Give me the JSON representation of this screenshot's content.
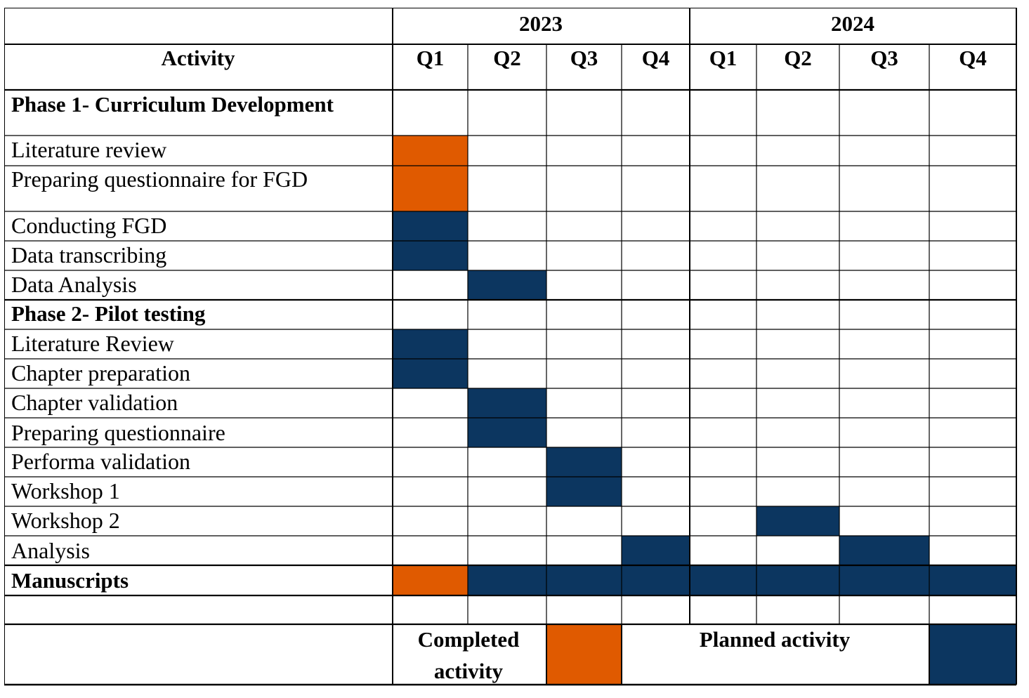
{
  "header": {
    "activity_label": "Activity",
    "years": [
      {
        "label": "2023",
        "quarters": [
          "Q1",
          "Q2",
          "Q3",
          "Q4"
        ]
      },
      {
        "label": "2024",
        "quarters": [
          "Q1",
          "Q2",
          "Q3",
          "Q4"
        ]
      }
    ]
  },
  "colors": {
    "completed": "#E05A00",
    "planned": "#0C3660",
    "grid": "#000000",
    "background": "#FFFFFF"
  },
  "rows": [
    {
      "label": "Phase 1- Curriculum Development",
      "bold": true,
      "cells": [
        "",
        "",
        "",
        "",
        "",
        "",
        "",
        ""
      ]
    },
    {
      "label": "Literature review",
      "bold": false,
      "cells": [
        "completed",
        "",
        "",
        "",
        "",
        "",
        "",
        ""
      ]
    },
    {
      "label": "Preparing questionnaire for FGD",
      "bold": false,
      "cells": [
        "completed",
        "",
        "",
        "",
        "",
        "",
        "",
        ""
      ]
    },
    {
      "label": "Conducting FGD",
      "bold": false,
      "cells": [
        "planned",
        "",
        "",
        "",
        "",
        "",
        "",
        ""
      ]
    },
    {
      "label": "Data transcribing",
      "bold": false,
      "cells": [
        "planned",
        "",
        "",
        "",
        "",
        "",
        "",
        ""
      ]
    },
    {
      "label": "Data Analysis",
      "bold": false,
      "cells": [
        "",
        "planned",
        "",
        "",
        "",
        "",
        "",
        ""
      ]
    },
    {
      "label": "Phase 2- Pilot testing",
      "bold": true,
      "cells": [
        "",
        "",
        "",
        "",
        "",
        "",
        "",
        ""
      ]
    },
    {
      "label": "Literature Review",
      "bold": false,
      "cells": [
        "planned",
        "",
        "",
        "",
        "",
        "",
        "",
        ""
      ]
    },
    {
      "label": "Chapter preparation",
      "bold": false,
      "cells": [
        "planned",
        "",
        "",
        "",
        "",
        "",
        "",
        ""
      ]
    },
    {
      "label": "Chapter validation",
      "bold": false,
      "cells": [
        "",
        "planned",
        "",
        "",
        "",
        "",
        "",
        ""
      ]
    },
    {
      "label": "Preparing questionnaire",
      "bold": false,
      "cells": [
        "",
        "planned",
        "",
        "",
        "",
        "",
        "",
        ""
      ]
    },
    {
      "label": "Performa validation",
      "bold": false,
      "cells": [
        "",
        "",
        "planned",
        "",
        "",
        "",
        "",
        ""
      ]
    },
    {
      "label": "Workshop 1",
      "bold": false,
      "cells": [
        "",
        "",
        "planned",
        "",
        "",
        "",
        "",
        ""
      ]
    },
    {
      "label": "Workshop 2",
      "bold": false,
      "cells": [
        "",
        "",
        "",
        "",
        "",
        "planned",
        "",
        ""
      ]
    },
    {
      "label": "Analysis",
      "bold": false,
      "cells": [
        "",
        "",
        "",
        "planned",
        "",
        "",
        "planned",
        ""
      ]
    },
    {
      "label": "Manuscripts",
      "bold": true,
      "cells": [
        "completed",
        "planned",
        "planned",
        "planned",
        "planned",
        "planned",
        "planned",
        "planned"
      ]
    },
    {
      "label": "",
      "bold": false,
      "cells": [
        "",
        "",
        "",
        "",
        "",
        "",
        "",
        ""
      ]
    }
  ],
  "legend": {
    "completed_label_lines": [
      "Completed",
      "activity"
    ],
    "planned_label": "Planned activity"
  }
}
